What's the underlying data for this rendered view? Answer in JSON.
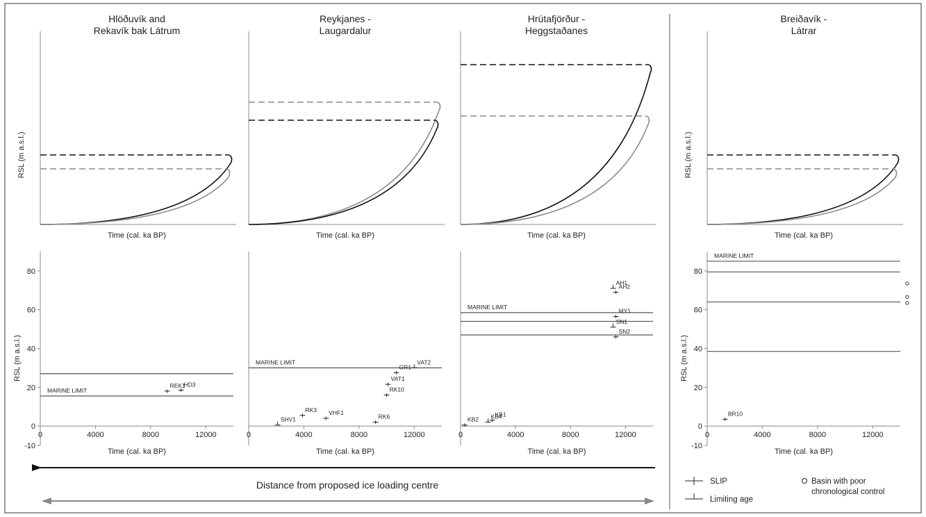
{
  "figure": {
    "distance_label": "Distance from proposed ice loading centre",
    "legend": {
      "slip": "SLIP",
      "limiting": "Limiting age",
      "basin_line1": "Basin with poor",
      "basin_line2": "chronological control"
    }
  },
  "chart_data": [
    {
      "type": "line",
      "panel": "top-1",
      "title": [
        "Hlöðuvík and",
        "Rekavík bak Látrum"
      ],
      "xlabel": "Time (cal. ka BP)",
      "ylabel": "RSL (m a.s.l.)",
      "series": [
        {
          "color": "#111111",
          "marine_limit_level": 0.5,
          "curve_end": 0.5
        },
        {
          "color": "#8a8a8a",
          "marine_limit_level": 0.4,
          "curve_end": 0.4
        }
      ]
    },
    {
      "type": "line",
      "panel": "top-2",
      "title": [
        "Reykjanes -",
        "Laugardalur"
      ],
      "xlabel": "Time (cal. ka BP)",
      "ylabel": "",
      "series": [
        {
          "color": "#8a8a8a",
          "marine_limit_level": 0.88,
          "curve_end": 0.88
        },
        {
          "color": "#111111",
          "marine_limit_level": 0.75,
          "curve_end": 0.75
        }
      ]
    },
    {
      "type": "line",
      "panel": "top-3",
      "title": [
        "Hrútafjörður -",
        "Heggstaðanes"
      ],
      "xlabel": "Time (cal. ka BP)",
      "ylabel": "",
      "series": [
        {
          "color": "#111111",
          "marine_limit_level": 1.15,
          "curve_end": 1.15
        },
        {
          "color": "#8a8a8a",
          "marine_limit_level": 0.78,
          "curve_end": 0.78
        }
      ]
    },
    {
      "type": "line",
      "panel": "top-4",
      "title": [
        "Breiðavík -",
        "Látrar"
      ],
      "xlabel": "Time (cal. ka BP)",
      "ylabel": "RSL (m a.s.l.)",
      "series": [
        {
          "color": "#111111",
          "marine_limit_level": 0.5,
          "curve_end": 0.5
        },
        {
          "color": "#8a8a8a",
          "marine_limit_level": 0.4,
          "curve_end": 0.4
        }
      ]
    },
    {
      "type": "scatter",
      "panel": "bottom-1",
      "xlabel": "Time (cal. ka BP)",
      "ylabel": "RSL (m a.s.l.)",
      "xlim": [
        0,
        14000
      ],
      "ylim": [
        -10,
        90
      ],
      "xticks": [
        0,
        4000,
        8000,
        12000
      ],
      "yticks": [
        -10,
        0,
        20,
        40,
        60,
        80
      ],
      "hlines": [
        27,
        15.5
      ],
      "marine_limit_label": "MARINE LIMIT",
      "marine_limit_y": 15.5,
      "points": [
        {
          "label": "REK1",
          "x": 9200,
          "y": 18,
          "kind": "slip"
        },
        {
          "label": "HD3",
          "x": 10200,
          "y": 18.5,
          "kind": "slip"
        }
      ]
    },
    {
      "type": "scatter",
      "panel": "bottom-2",
      "xlabel": "Time (cal. ka BP)",
      "ylabel": "",
      "xlim": [
        0,
        14000
      ],
      "ylim": [
        -10,
        90
      ],
      "xticks": [
        0,
        4000,
        8000,
        12000
      ],
      "yticks": [],
      "hlines": [
        30
      ],
      "marine_limit_label": "MARINE LIMIT",
      "marine_limit_y": 30,
      "points": [
        {
          "label": "SHV1",
          "x": 2100,
          "y": 0.5,
          "kind": "limiting"
        },
        {
          "label": "RK3",
          "x": 3900,
          "y": 5.5,
          "kind": "slip"
        },
        {
          "label": "VHF1",
          "x": 5600,
          "y": 4,
          "kind": "slip"
        },
        {
          "label": "RK6",
          "x": 9200,
          "y": 2,
          "kind": "slip"
        },
        {
          "label": "RK10",
          "x": 10000,
          "y": 16,
          "kind": "slip"
        },
        {
          "label": "VAT1",
          "x": 10100,
          "y": 21.5,
          "kind": "slip"
        },
        {
          "label": "GR1",
          "x": 10700,
          "y": 27.5,
          "kind": "slip"
        },
        {
          "label": "VAT2",
          "x": 12000,
          "y": 30,
          "kind": "limiting"
        }
      ]
    },
    {
      "type": "scatter",
      "panel": "bottom-3",
      "xlabel": "Time (cal. ka BP)",
      "ylabel": "",
      "xlim": [
        0,
        14000
      ],
      "ylim": [
        -10,
        90
      ],
      "xticks": [
        0,
        4000,
        8000,
        12000
      ],
      "yticks": [],
      "hlines": [
        58.5,
        54,
        47
      ],
      "marine_limit_label": "MARINE LIMIT",
      "marine_limit_y": 58.5,
      "points": [
        {
          "label": "KB2",
          "x": 300,
          "y": 0.5,
          "kind": "slip"
        },
        {
          "label": "KB4",
          "x": 2000,
          "y": 2,
          "kind": "limiting"
        },
        {
          "label": "KB1",
          "x": 2300,
          "y": 3,
          "kind": "slip"
        },
        {
          "label": "AH1",
          "x": 11100,
          "y": 71,
          "kind": "limiting"
        },
        {
          "label": "AH2",
          "x": 11300,
          "y": 69,
          "kind": "slip"
        },
        {
          "label": "MY1",
          "x": 11300,
          "y": 56.5,
          "kind": "slip"
        },
        {
          "label": "SN1",
          "x": 11100,
          "y": 51,
          "kind": "limiting"
        },
        {
          "label": "SN2",
          "x": 11300,
          "y": 46,
          "kind": "slip"
        }
      ]
    },
    {
      "type": "scatter",
      "panel": "bottom-4",
      "xlabel": "Time (cal. ka BP)",
      "ylabel": "RSL (m a.s.l.)",
      "xlim": [
        0,
        14000
      ],
      "ylim": [
        -10,
        90
      ],
      "xticks": [
        0,
        4000,
        8000,
        12000
      ],
      "yticks": [
        -10,
        0,
        20,
        40,
        60,
        80
      ],
      "hlines": [
        85,
        79.5,
        64,
        38.5
      ],
      "marine_limit_label": "MARINE LIMIT",
      "marine_limit_y": 85,
      "points": [
        {
          "label": "BR10",
          "x": 1300,
          "y": 3.5,
          "kind": "slip"
        },
        {
          "label": "",
          "x": 14500,
          "y": 73.5,
          "kind": "basin"
        },
        {
          "label": "",
          "x": 14500,
          "y": 66.5,
          "kind": "basin"
        },
        {
          "label": "",
          "x": 14500,
          "y": 63.5,
          "kind": "basin"
        }
      ]
    }
  ]
}
